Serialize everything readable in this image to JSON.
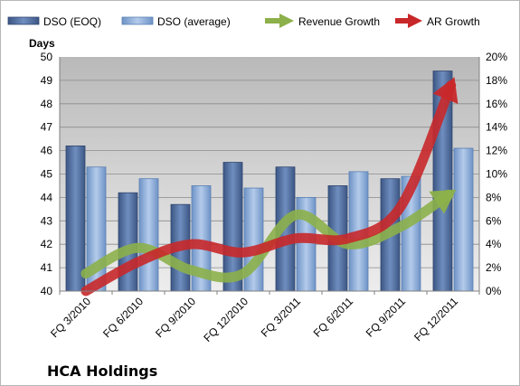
{
  "chart_data": {
    "type": "bar",
    "title": "HCA Holdings",
    "ylabel": "Days",
    "y2label": "",
    "categories": [
      "FQ 3/2010",
      "FQ 6/2010",
      "FQ 9/2010",
      "FQ 12/2010",
      "FQ 3/2011",
      "FQ 6/2011",
      "FQ 9/2011",
      "FQ 12/2011"
    ],
    "ylim": [
      40,
      50
    ],
    "yticks": [
      40,
      41,
      42,
      43,
      44,
      45,
      46,
      47,
      48,
      49,
      50
    ],
    "y2lim": [
      0,
      20
    ],
    "y2ticks": [
      "0%",
      "2%",
      "4%",
      "6%",
      "8%",
      "10%",
      "12%",
      "14%",
      "16%",
      "18%",
      "20%"
    ],
    "grid": true,
    "legend_position": "top",
    "bar_series": [
      {
        "name": "DSO (EOQ)",
        "color": "#4f6c9c",
        "values": [
          46.2,
          44.2,
          43.7,
          45.5,
          45.3,
          44.5,
          44.8,
          49.4
        ]
      },
      {
        "name": "DSO (average)",
        "color": "#8fb0dc",
        "values": [
          45.3,
          44.8,
          44.5,
          44.4,
          44.0,
          45.1,
          44.9,
          46.1
        ]
      }
    ],
    "line_series": [
      {
        "name": "Revenue Growth",
        "color": "#8cb04a",
        "axis": "secondary",
        "values": [
          1.5,
          3.7,
          1.8,
          1.5,
          6.5,
          4.0,
          5.5,
          8.5
        ]
      },
      {
        "name": "AR Growth",
        "color": "#c8282a",
        "axis": "secondary",
        "values": [
          0.0,
          2.5,
          4.0,
          3.3,
          4.5,
          4.5,
          7.2,
          18.0
        ]
      }
    ]
  }
}
